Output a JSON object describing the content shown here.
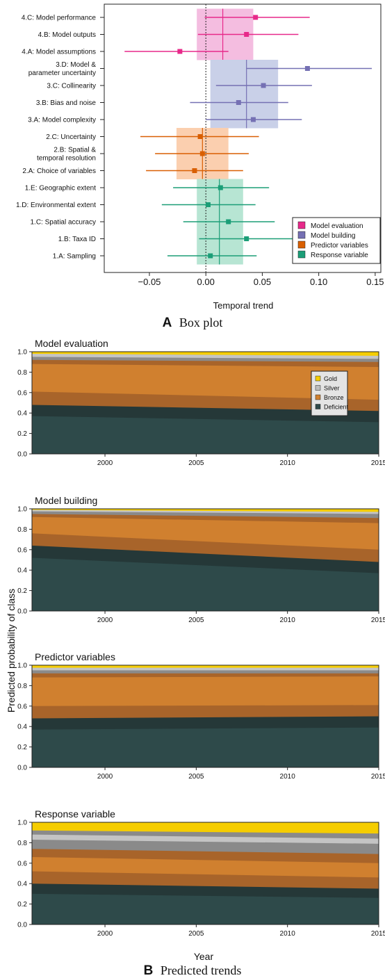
{
  "figure": {
    "a_letter": "A",
    "a_caption": "Box plot",
    "b_letter": "B",
    "b_caption": "Predicted trends",
    "shared_ylabel": "Predicted probability of class",
    "shared_xlabel": "Year"
  },
  "chart_data": [
    {
      "type": "forest",
      "title": "",
      "xlabel": "Temporal trend",
      "ylabel": "",
      "xlim": [
        -0.09,
        0.155
      ],
      "xticks": [
        -0.05,
        0.0,
        0.05,
        0.1,
        0.15
      ],
      "xtick_labels": [
        "−0.05",
        "0.00",
        "0.05",
        "0.10",
        "0.15"
      ],
      "reference_line": 0.0,
      "legend_position": "bottom-right",
      "groups": [
        {
          "name": "Model evaluation",
          "color": "#e7298a",
          "fill": "#f4bde0",
          "box": [
            -0.008,
            0.042
          ],
          "mean": 0.015
        },
        {
          "name": "Model building",
          "color": "#7570b3",
          "fill": "#c9d0e8",
          "box": [
            0.004,
            0.064
          ],
          "mean": 0.036
        },
        {
          "name": "Predictor variables",
          "color": "#d95f02",
          "fill": "#fbcfaf",
          "box": [
            -0.026,
            0.02
          ],
          "mean": -0.003
        },
        {
          "name": "Response variable",
          "color": "#1b9e77",
          "fill": "#b7e5d3",
          "box": [
            -0.008,
            0.033
          ],
          "mean": 0.012
        }
      ],
      "items": [
        {
          "label": "4.C: Model performance",
          "group": 0,
          "estimate": 0.044,
          "lower": -0.001,
          "upper": 0.092
        },
        {
          "label": "4.B: Model outputs",
          "group": 0,
          "estimate": 0.036,
          "lower": -0.007,
          "upper": 0.082
        },
        {
          "label": "4.A: Model assumptions",
          "group": 0,
          "estimate": -0.023,
          "lower": -0.072,
          "upper": 0.02
        },
        {
          "label": "3.D: Model &\nparameter uncertainty",
          "group": 1,
          "estimate": 0.09,
          "lower": 0.036,
          "upper": 0.147
        },
        {
          "label": "3.C: Collinearity",
          "group": 1,
          "estimate": 0.051,
          "lower": 0.009,
          "upper": 0.094
        },
        {
          "label": "3.B: Bias and noise",
          "group": 1,
          "estimate": 0.029,
          "lower": -0.014,
          "upper": 0.073
        },
        {
          "label": "3.A: Model complexity",
          "group": 1,
          "estimate": 0.042,
          "lower": 0.0,
          "upper": 0.085
        },
        {
          "label": "2.C: Uncertainty",
          "group": 2,
          "estimate": -0.005,
          "lower": -0.058,
          "upper": 0.047
        },
        {
          "label": "2.B: Spatial &\ntemporal resolution",
          "group": 2,
          "estimate": -0.003,
          "lower": -0.045,
          "upper": 0.038
        },
        {
          "label": "2.A: Choice of variables",
          "group": 2,
          "estimate": -0.01,
          "lower": -0.053,
          "upper": 0.033
        },
        {
          "label": "1.E: Geographic extent",
          "group": 3,
          "estimate": 0.013,
          "lower": -0.029,
          "upper": 0.056
        },
        {
          "label": "1.D: Environmental extent",
          "group": 3,
          "estimate": 0.002,
          "lower": -0.039,
          "upper": 0.044
        },
        {
          "label": "1.C: Spatial accuracy",
          "group": 3,
          "estimate": 0.02,
          "lower": -0.02,
          "upper": 0.061
        },
        {
          "label": "1.B: Taxa ID",
          "group": 3,
          "estimate": 0.036,
          "lower": -0.006,
          "upper": 0.078
        },
        {
          "label": "1.A: Sampling",
          "group": 3,
          "estimate": 0.004,
          "lower": -0.034,
          "upper": 0.045
        }
      ]
    },
    {
      "type": "area",
      "title": "Model evaluation",
      "xlim": [
        1996,
        2015
      ],
      "ylim": [
        0,
        1
      ],
      "xticks": [
        2000,
        2005,
        2010,
        2015
      ],
      "yticks": [
        0,
        0.2,
        0.4,
        0.6,
        0.8,
        1.0
      ],
      "legend_position": "top-right",
      "legend": [
        {
          "name": "Gold",
          "color": "#f5cd00"
        },
        {
          "name": "Silver",
          "color": "#bdbdbd"
        },
        {
          "name": "Bronze",
          "color": "#d0802f"
        },
        {
          "name": "Deficient",
          "color": "#2e4a4a"
        }
      ],
      "x": [
        1996,
        2015
      ],
      "boundaries": [
        {
          "color": "#2e4a4a",
          "start": 0.37,
          "end": 0.31
        },
        {
          "color": "#253838",
          "start": 0.48,
          "end": 0.42
        },
        {
          "color": "#a8642a",
          "start": 0.61,
          "end": 0.53
        },
        {
          "color": "#d0802f",
          "start": 0.88,
          "end": 0.85
        },
        {
          "color": "#a8642a",
          "start": 0.92,
          "end": 0.9
        },
        {
          "color": "#8a8a8a",
          "start": 0.95,
          "end": 0.93
        },
        {
          "color": "#c4c4c4",
          "start": 0.98,
          "end": 0.96
        },
        {
          "color": "#f5cd00",
          "start": 1.0,
          "end": 1.0
        }
      ]
    },
    {
      "type": "area",
      "title": "Model building",
      "xlim": [
        1996,
        2015
      ],
      "ylim": [
        0,
        1
      ],
      "xticks": [
        2000,
        2005,
        2010,
        2015
      ],
      "yticks": [
        0,
        0.2,
        0.4,
        0.6,
        0.8,
        1.0
      ],
      "x": [
        1996,
        2015
      ],
      "boundaries": [
        {
          "color": "#2e4a4a",
          "start": 0.52,
          "end": 0.37
        },
        {
          "color": "#253838",
          "start": 0.64,
          "end": 0.48
        },
        {
          "color": "#a8642a",
          "start": 0.76,
          "end": 0.6
        },
        {
          "color": "#d0802f",
          "start": 0.92,
          "end": 0.86
        },
        {
          "color": "#a8642a",
          "start": 0.95,
          "end": 0.91
        },
        {
          "color": "#8a8a8a",
          "start": 0.975,
          "end": 0.95
        },
        {
          "color": "#c4c4c4",
          "start": 0.99,
          "end": 0.97
        },
        {
          "color": "#f5cd00",
          "start": 1.0,
          "end": 1.0
        }
      ]
    },
    {
      "type": "area",
      "title": "Predictor variables",
      "xlim": [
        1996,
        2015
      ],
      "ylim": [
        0,
        1
      ],
      "xticks": [
        2000,
        2005,
        2010,
        2015
      ],
      "yticks": [
        0,
        0.2,
        0.4,
        0.6,
        0.8,
        1.0
      ],
      "x": [
        1996,
        2015
      ],
      "boundaries": [
        {
          "color": "#2e4a4a",
          "start": 0.37,
          "end": 0.39
        },
        {
          "color": "#253838",
          "start": 0.48,
          "end": 0.5
        },
        {
          "color": "#a8642a",
          "start": 0.6,
          "end": 0.61
        },
        {
          "color": "#d0802f",
          "start": 0.88,
          "end": 0.89
        },
        {
          "color": "#a8642a",
          "start": 0.92,
          "end": 0.92
        },
        {
          "color": "#8a8a8a",
          "start": 0.95,
          "end": 0.95
        },
        {
          "color": "#c4c4c4",
          "start": 0.975,
          "end": 0.975
        },
        {
          "color": "#f5cd00",
          "start": 1.0,
          "end": 1.0
        }
      ]
    },
    {
      "type": "area",
      "title": "Response variable",
      "xlim": [
        1996,
        2015
      ],
      "ylim": [
        0,
        1
      ],
      "xticks": [
        2000,
        2005,
        2010,
        2015
      ],
      "yticks": [
        0,
        0.2,
        0.4,
        0.6,
        0.8,
        1.0
      ],
      "x": [
        1996,
        2015
      ],
      "boundaries": [
        {
          "color": "#2e4a4a",
          "start": 0.3,
          "end": 0.26
        },
        {
          "color": "#253838",
          "start": 0.4,
          "end": 0.35
        },
        {
          "color": "#a8642a",
          "start": 0.52,
          "end": 0.46
        },
        {
          "color": "#d0802f",
          "start": 0.66,
          "end": 0.6
        },
        {
          "color": "#a8642a",
          "start": 0.74,
          "end": 0.69
        },
        {
          "color": "#8a8a8a",
          "start": 0.83,
          "end": 0.79
        },
        {
          "color": "#c4c4c4",
          "start": 0.88,
          "end": 0.84
        },
        {
          "color": "#8a8a8a",
          "start": 0.92,
          "end": 0.89
        },
        {
          "color": "#f5cd00",
          "start": 1.0,
          "end": 1.0
        }
      ]
    }
  ]
}
